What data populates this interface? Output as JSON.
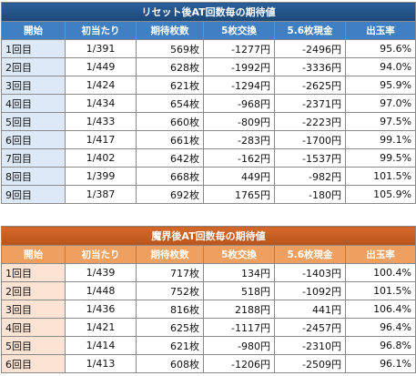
{
  "tables": [
    {
      "title": "リセット後AT回数毎の期待値",
      "columns": [
        "開始",
        "初当たり",
        "期待枚数",
        "5枚交換",
        "5.6枚現金",
        "出玉率"
      ],
      "rows": [
        [
          "1回目",
          "1/391",
          "569枚",
          "-1277円",
          "-2496円",
          "95.6%"
        ],
        [
          "2回目",
          "1/449",
          "628枚",
          "-1992円",
          "-3336円",
          "94.0%"
        ],
        [
          "3回目",
          "1/424",
          "621枚",
          "-1294円",
          "-2625円",
          "95.9%"
        ],
        [
          "4回目",
          "1/434",
          "654枚",
          "-968円",
          "-2371円",
          "97.0%"
        ],
        [
          "5回目",
          "1/433",
          "660枚",
          "-809円",
          "-2223円",
          "97.5%"
        ],
        [
          "6回目",
          "1/417",
          "661枚",
          "-283円",
          "-1700円",
          "99.1%"
        ],
        [
          "7回目",
          "1/402",
          "642枚",
          "-162円",
          "-1537円",
          "99.5%"
        ],
        [
          "8回目",
          "1/399",
          "668枚",
          "449円",
          "-982円",
          "101.5%"
        ],
        [
          "9回目",
          "1/387",
          "692枚",
          "1765円",
          "-180円",
          "105.9%"
        ]
      ]
    },
    {
      "title": "魔界後AT回数毎の期待値",
      "columns": [
        "開始",
        "初当たり",
        "期待枚数",
        "5枚交換",
        "5.6枚現金",
        "出玉率"
      ],
      "rows": [
        [
          "1回目",
          "1/439",
          "717枚",
          "134円",
          "-1403円",
          "100.4%"
        ],
        [
          "2回目",
          "1/448",
          "752枚",
          "518円",
          "-1092円",
          "101.5%"
        ],
        [
          "3回目",
          "1/436",
          "816枚",
          "2188円",
          "441円",
          "106.4%"
        ],
        [
          "4回目",
          "1/421",
          "625枚",
          "-1117円",
          "-2457円",
          "96.4%"
        ],
        [
          "5回目",
          "1/414",
          "621枚",
          "-980円",
          "-2310円",
          "96.8%"
        ],
        [
          "6回目",
          "1/413",
          "608枚",
          "-1206円",
          "-2509円",
          "96.1%"
        ]
      ]
    }
  ]
}
